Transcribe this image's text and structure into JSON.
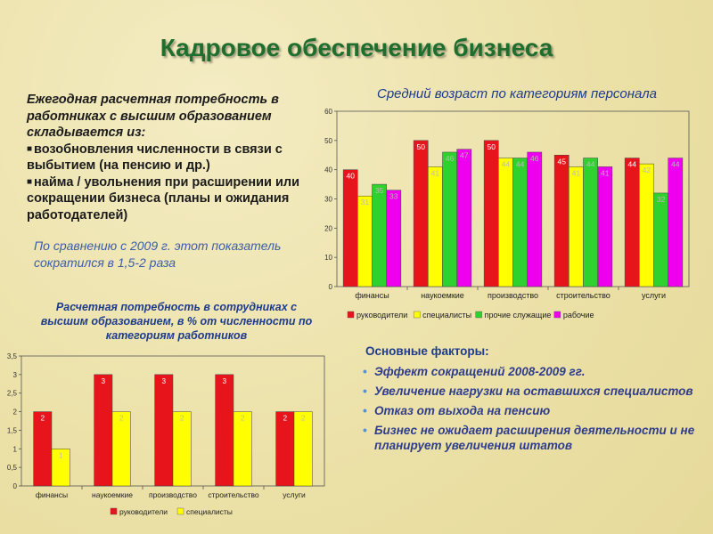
{
  "title": "Кадровое обеспечение бизнеса",
  "left_text": {
    "intro": "Ежегодная расчетная потребность в работниках с высшим образованием складывается из:",
    "items": [
      "возобновления численности в связи с выбытием (на пенсию и др.)",
      "найма / увольнения при расширении или сокращении бизнеса (планы и ожидания работодателей)"
    ]
  },
  "comparison_text": "По сравнению с 2009 г. этот показатель сократился в 1,5-2 раза",
  "factors": {
    "heading": "Основные факторы:",
    "items": [
      "Эффект сокращений 2008-2009 гг.",
      "Увеличение нагрузки на оставшихся специалистов",
      "Отказ от выхода на пенсию",
      "Бизнес не ожидает расширения деятельности и не планирует увеличения штатов"
    ]
  },
  "colors": {
    "title": "#1f6e2e",
    "red": "#e8141c",
    "yellow": "#ffff00",
    "green": "#2fd12f",
    "magenta": "#ee00ee"
  },
  "chart_data": [
    {
      "type": "bar",
      "title": "Средний возраст по категориям персонала",
      "categories": [
        "финансы",
        "наукоемкие",
        "производство",
        "строительство",
        "услуги"
      ],
      "ylim": [
        0,
        60
      ],
      "yticks": [
        0,
        10,
        20,
        30,
        40,
        50,
        60
      ],
      "grid": false,
      "legend_placement": "bottom",
      "series": [
        {
          "name": "руководители",
          "color": "#e8141c",
          "values": [
            40,
            50,
            50,
            45,
            44
          ]
        },
        {
          "name": "специалисты",
          "color": "#ffff00",
          "values": [
            31,
            41,
            44,
            41,
            42
          ]
        },
        {
          "name": "прочие служащие",
          "color": "#2fd12f",
          "values": [
            35,
            46,
            44,
            44,
            32
          ]
        },
        {
          "name": "рабочие",
          "color": "#ee00ee",
          "values": [
            33,
            47,
            46,
            41,
            44
          ]
        }
      ]
    },
    {
      "type": "bar",
      "title": "Расчетная потребность в сотрудниках с высшим образованием, в % от численности по категориям работников",
      "categories": [
        "финансы",
        "наукоемкие",
        "производство",
        "строительство",
        "услуги"
      ],
      "ylim": [
        0,
        3.5
      ],
      "yticks": [
        "0",
        "0,5",
        "1",
        "1,5",
        "2",
        "2,5",
        "3",
        "3,5"
      ],
      "grid": false,
      "legend_placement": "bottom",
      "series": [
        {
          "name": "руководители",
          "color": "#e8141c",
          "values": [
            2,
            3,
            3,
            3,
            2
          ]
        },
        {
          "name": "специалисты",
          "color": "#ffff00",
          "values": [
            1,
            2,
            2,
            2,
            2
          ]
        }
      ]
    }
  ]
}
